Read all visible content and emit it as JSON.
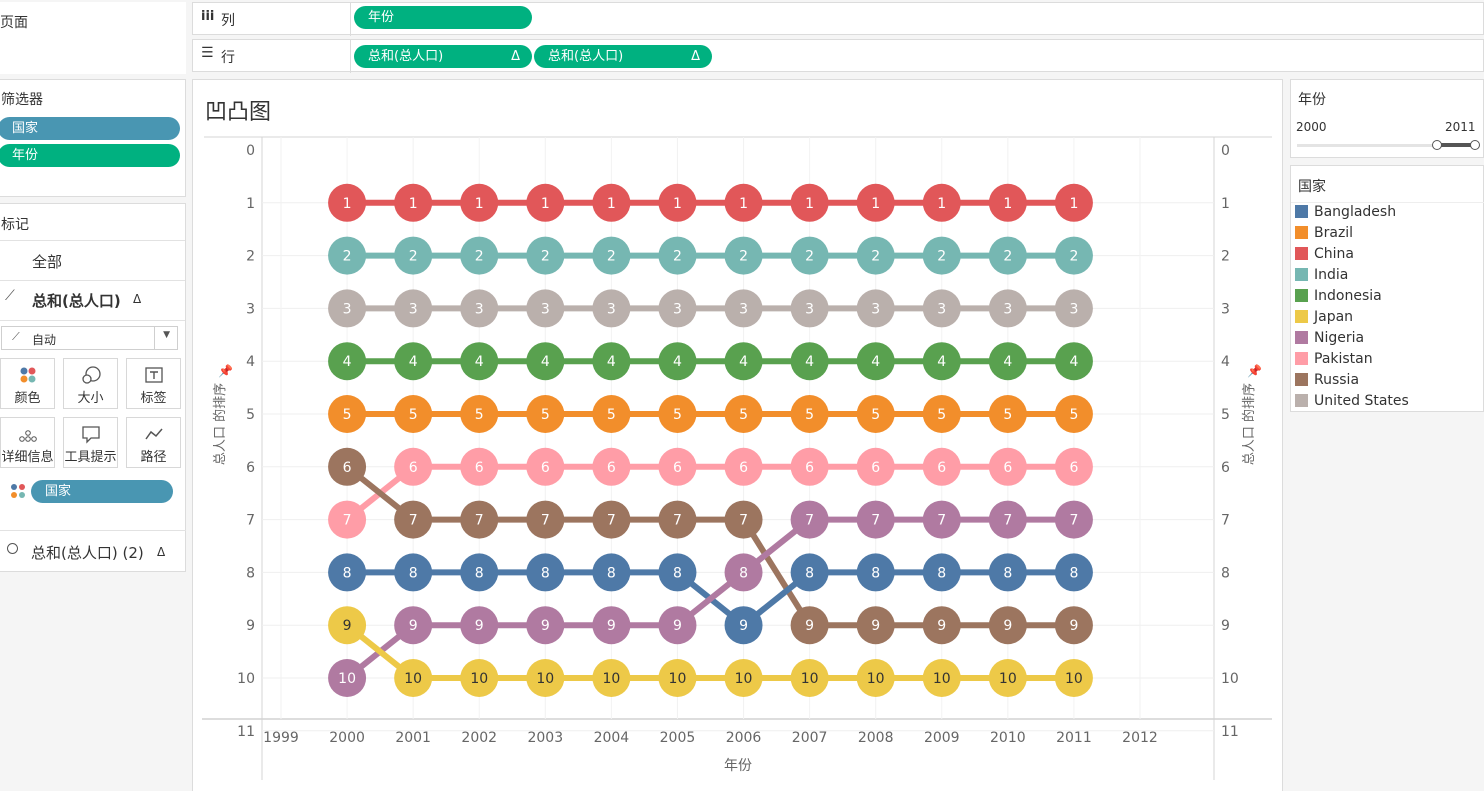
{
  "shelves": {
    "pages_label": "页面",
    "columns_icon": "iii",
    "columns_label": "列",
    "columns_pill": "年份",
    "rows_icon": "☰",
    "rows_label": "行",
    "rows_pill_1": "总和(总人口)",
    "rows_pill_2": "总和(总人口)",
    "delta": "Δ"
  },
  "filters": {
    "title": "筛选器",
    "items": [
      "国家",
      "年份"
    ]
  },
  "marks": {
    "title": "标记",
    "all_label": "全部",
    "measure_1": "总和(总人口)",
    "measure_1_delta": "Δ",
    "mark_type": "自动",
    "buttons": {
      "color": "颜色",
      "size": "大小",
      "label": "标签",
      "detail": "详细信息",
      "tooltip": "工具提示",
      "path": "路径"
    },
    "color_pill": "国家",
    "measure_2": "总和(总人口) (2)",
    "measure_2_delta": "Δ"
  },
  "year_filter": {
    "title": "年份",
    "min": "2000",
    "max": "2011"
  },
  "legend": {
    "title": "国家",
    "items": [
      {
        "name": "Bangladesh",
        "color": "#4e79a7"
      },
      {
        "name": "Brazil",
        "color": "#f28e2b"
      },
      {
        "name": "China",
        "color": "#e15759"
      },
      {
        "name": "India",
        "color": "#76b7b2"
      },
      {
        "name": "Indonesia",
        "color": "#59a14f"
      },
      {
        "name": "Japan",
        "color": "#edc948"
      },
      {
        "name": "Nigeria",
        "color": "#b07aa1"
      },
      {
        "name": "Pakistan",
        "color": "#ff9da7"
      },
      {
        "name": "Russia",
        "color": "#9c755f"
      },
      {
        "name": "United States",
        "color": "#bab0ac"
      }
    ]
  },
  "chart_data": {
    "type": "line",
    "title": "凹凸图",
    "xlabel": "年份",
    "ylabel": "总人口 的排序",
    "x": [
      2000,
      2001,
      2002,
      2003,
      2004,
      2005,
      2006,
      2007,
      2008,
      2009,
      2010,
      2011
    ],
    "xlim": [
      1999,
      2012
    ],
    "x_ticks": [
      "1999",
      "2000",
      "2001",
      "2002",
      "2003",
      "2004",
      "2005",
      "2006",
      "2007",
      "2008",
      "2009",
      "2010",
      "2011",
      "2012"
    ],
    "ylim": [
      0,
      11
    ],
    "y_reversed": true,
    "y_ticks": [
      "0",
      "1",
      "2",
      "3",
      "4",
      "5",
      "6",
      "7",
      "8",
      "9",
      "10",
      "11"
    ],
    "grid": true,
    "series": [
      {
        "name": "China",
        "color": "#e15759",
        "values": [
          1,
          1,
          1,
          1,
          1,
          1,
          1,
          1,
          1,
          1,
          1,
          1
        ]
      },
      {
        "name": "India",
        "color": "#76b7b2",
        "values": [
          2,
          2,
          2,
          2,
          2,
          2,
          2,
          2,
          2,
          2,
          2,
          2
        ]
      },
      {
        "name": "United States",
        "color": "#bab0ac",
        "values": [
          3,
          3,
          3,
          3,
          3,
          3,
          3,
          3,
          3,
          3,
          3,
          3
        ]
      },
      {
        "name": "Indonesia",
        "color": "#59a14f",
        "values": [
          4,
          4,
          4,
          4,
          4,
          4,
          4,
          4,
          4,
          4,
          4,
          4
        ]
      },
      {
        "name": "Brazil",
        "color": "#f28e2b",
        "values": [
          5,
          5,
          5,
          5,
          5,
          5,
          5,
          5,
          5,
          5,
          5,
          5
        ]
      },
      {
        "name": "Pakistan",
        "color": "#ff9da7",
        "values": [
          7,
          6,
          6,
          6,
          6,
          6,
          6,
          6,
          6,
          6,
          6,
          6
        ]
      },
      {
        "name": "Russia",
        "color": "#9c755f",
        "values": [
          6,
          7,
          7,
          7,
          7,
          7,
          7,
          9,
          9,
          9,
          9,
          9
        ]
      },
      {
        "name": "Bangladesh",
        "color": "#4e79a7",
        "values": [
          8,
          8,
          8,
          8,
          8,
          8,
          9,
          8,
          8,
          8,
          8,
          8
        ]
      },
      {
        "name": "Nigeria",
        "color": "#b07aa1",
        "values": [
          10,
          9,
          9,
          9,
          9,
          9,
          8,
          7,
          7,
          7,
          7,
          7
        ]
      },
      {
        "name": "Japan",
        "color": "#edc948",
        "values": [
          9,
          10,
          10,
          10,
          10,
          10,
          10,
          10,
          10,
          10,
          10,
          10
        ]
      }
    ]
  }
}
